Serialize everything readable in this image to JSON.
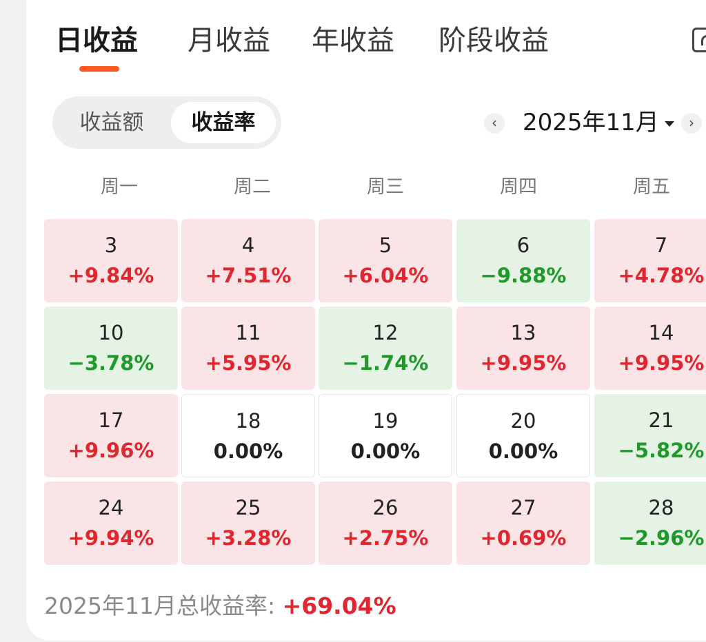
{
  "tabs": [
    {
      "label": "日收益",
      "active": true
    },
    {
      "label": "月收益",
      "active": false
    },
    {
      "label": "年收益",
      "active": false
    },
    {
      "label": "阶段收益",
      "active": false
    }
  ],
  "segment": {
    "options": [
      "收益额",
      "收益率"
    ],
    "selected": "收益率"
  },
  "month_nav": {
    "prev_icon": "‹",
    "next_icon": "›",
    "label": "2025年11月"
  },
  "weekdays": [
    "周一",
    "周二",
    "周三",
    "周四",
    "周五"
  ],
  "calendar": {
    "rows": [
      [
        {
          "day": "3",
          "pct": "+9.84%",
          "trend": "up"
        },
        {
          "day": "4",
          "pct": "+7.51%",
          "trend": "up"
        },
        {
          "day": "5",
          "pct": "+6.04%",
          "trend": "up"
        },
        {
          "day": "6",
          "pct": "−9.88%",
          "trend": "down"
        },
        {
          "day": "7",
          "pct": "+4.78%",
          "trend": "up"
        }
      ],
      [
        {
          "day": "10",
          "pct": "−3.78%",
          "trend": "down"
        },
        {
          "day": "11",
          "pct": "+5.95%",
          "trend": "up"
        },
        {
          "day": "12",
          "pct": "−1.74%",
          "trend": "down"
        },
        {
          "day": "13",
          "pct": "+9.95%",
          "trend": "up"
        },
        {
          "day": "14",
          "pct": "+9.95%",
          "trend": "up"
        }
      ],
      [
        {
          "day": "17",
          "pct": "+9.96%",
          "trend": "up"
        },
        {
          "day": "18",
          "pct": "0.00%",
          "trend": "flat"
        },
        {
          "day": "19",
          "pct": "0.00%",
          "trend": "flat"
        },
        {
          "day": "20",
          "pct": "0.00%",
          "trend": "flat"
        },
        {
          "day": "21",
          "pct": "−5.82%",
          "trend": "down"
        }
      ],
      [
        {
          "day": "24",
          "pct": "+9.94%",
          "trend": "up"
        },
        {
          "day": "25",
          "pct": "+3.28%",
          "trend": "up"
        },
        {
          "day": "26",
          "pct": "+2.75%",
          "trend": "up"
        },
        {
          "day": "27",
          "pct": "+0.69%",
          "trend": "up"
        },
        {
          "day": "28",
          "pct": "−2.96%",
          "trend": "down"
        }
      ]
    ]
  },
  "summary": {
    "label": "2025年11月总收益率:",
    "value": "+69.04%"
  },
  "colors": {
    "accent": "#ff5a1f",
    "up_text": "#e0262e",
    "up_bg": "#fbe4e5",
    "down_text": "#1f9a2a",
    "down_bg": "#e4f3e4"
  },
  "icons": {
    "prev": "chevron-left-icon",
    "next": "chevron-right-icon",
    "dropdown": "caret-down-icon",
    "corner": "share-icon"
  }
}
